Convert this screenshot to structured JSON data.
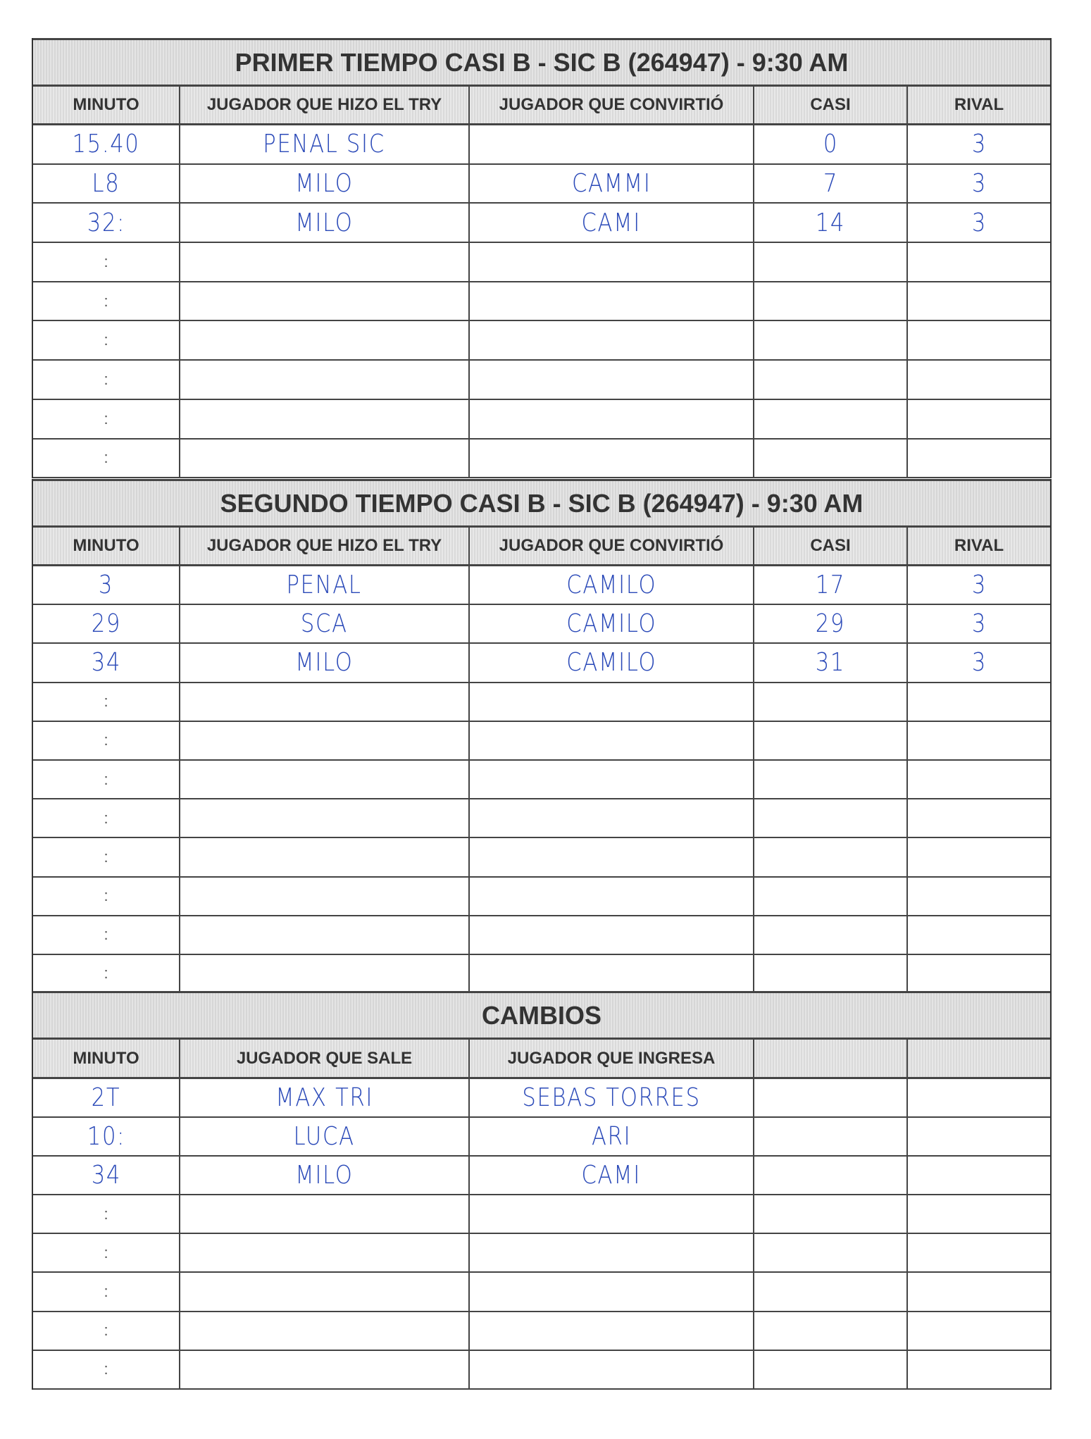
{
  "sections": [
    {
      "id": "primer",
      "title": "PRIMER TIEMPO CASI B - SIC B (264947)  - 9:30 AM",
      "headers": [
        "MINUTO",
        "JUGADOR QUE HIZO EL TRY",
        "JUGADOR QUE CONVIRTIÓ",
        "CASI",
        "RIVAL"
      ],
      "rows": [
        [
          "15.40",
          "PENAL SIC",
          "",
          "0",
          "3"
        ],
        [
          "L8",
          "MILO",
          "CAMMI",
          "7",
          "3"
        ],
        [
          "32:",
          "MILO",
          "CAMI",
          "14",
          "3"
        ],
        [
          ":",
          "",
          "",
          "",
          ""
        ],
        [
          ":",
          "",
          "",
          "",
          ""
        ],
        [
          ":",
          "",
          "",
          "",
          ""
        ],
        [
          ":",
          "",
          "",
          "",
          ""
        ],
        [
          ":",
          "",
          "",
          "",
          ""
        ],
        [
          ":",
          "",
          "",
          "",
          ""
        ]
      ]
    },
    {
      "id": "segundo",
      "title": "SEGUNDO TIEMPO CASI B - SIC B (264947)  - 9:30 AM",
      "headers": [
        "MINUTO",
        "JUGADOR QUE HIZO EL TRY",
        "JUGADOR QUE CONVIRTIÓ",
        "CASI",
        "RIVAL"
      ],
      "rows": [
        [
          "3",
          "PENAL",
          "CAMILO",
          "17",
          "3"
        ],
        [
          "29",
          "SCA",
          "CAMILO",
          "29",
          "3"
        ],
        [
          "34",
          "MILO",
          "CAMILO",
          "31",
          "3"
        ],
        [
          ":",
          "",
          "",
          "",
          ""
        ],
        [
          ":",
          "",
          "",
          "",
          ""
        ],
        [
          ":",
          "",
          "",
          "",
          ""
        ],
        [
          ":",
          "",
          "",
          "",
          ""
        ],
        [
          ":",
          "",
          "",
          "",
          ""
        ],
        [
          ":",
          "",
          "",
          "",
          ""
        ],
        [
          ":",
          "",
          "",
          "",
          ""
        ],
        [
          ":",
          "",
          "",
          "",
          ""
        ]
      ]
    },
    {
      "id": "cambios",
      "title": "CAMBIOS",
      "headers": [
        "MINUTO",
        "JUGADOR QUE SALE",
        "JUGADOR QUE INGRESA",
        "",
        ""
      ],
      "rows": [
        [
          "2T",
          "MAX TRI",
          "SEBAS TORRES",
          "",
          ""
        ],
        [
          "10:",
          "LUCA",
          "ARI",
          "",
          ""
        ],
        [
          "34",
          "MILO",
          "CAMI",
          "",
          ""
        ],
        [
          ":",
          "",
          "",
          "",
          ""
        ],
        [
          ":",
          "",
          "",
          "",
          ""
        ],
        [
          ":",
          "",
          "",
          "",
          ""
        ],
        [
          ":",
          "",
          "",
          "",
          ""
        ],
        [
          ":",
          "",
          "",
          "",
          ""
        ]
      ]
    }
  ],
  "ink_color": "#2a49b8"
}
